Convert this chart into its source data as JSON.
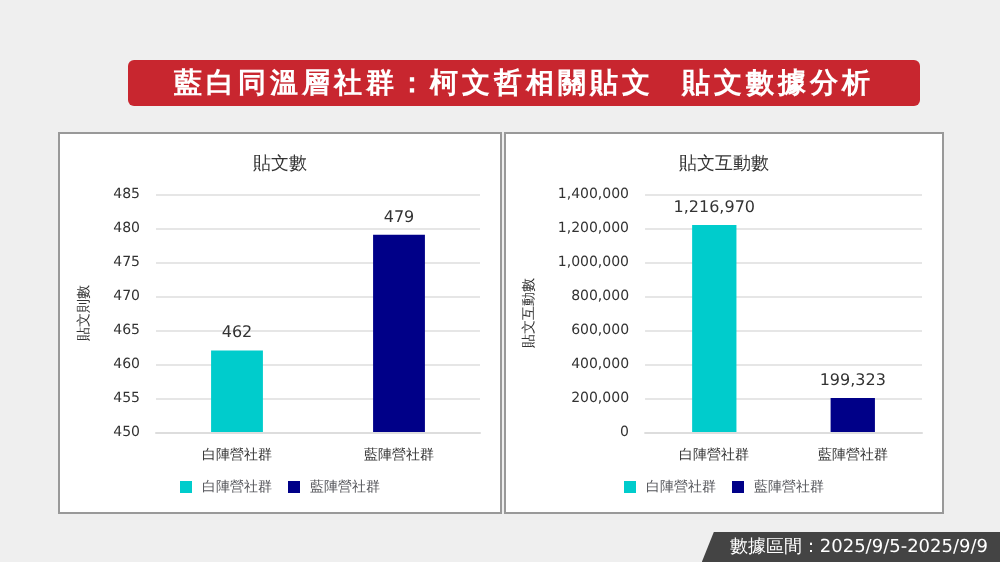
{
  "chart_data": [
    {
      "type": "bar",
      "title": "貼文數",
      "ylabel": "貼文則數",
      "annotations": [
        "藍白同溫層社群：柯文哲相關貼文  貼文數據分析"
      ],
      "categories": [
        "白陣營社群",
        "藍陣營社群"
      ],
      "series": [
        {
          "name": "白陣營社群",
          "color": "#00cccc",
          "values": [
            462,
            null
          ]
        },
        {
          "name": "藍陣營社群",
          "color": "#000088",
          "values": [
            null,
            479
          ]
        }
      ],
      "ylim": [
        450,
        485
      ],
      "yticks": [
        450,
        455,
        460,
        465,
        470,
        475,
        480,
        485
      ],
      "grid": "y",
      "legend": "bottom",
      "data_labels": true
    },
    {
      "type": "bar",
      "title": "貼文互動數",
      "ylabel": "貼文互動數",
      "annotations": [
        "數據區間：2025/9/5-2025/9/9"
      ],
      "categories": [
        "白陣營社群",
        "藍陣營社群"
      ],
      "series": [
        {
          "name": "白陣營社群",
          "color": "#00cccc",
          "values": [
            1216970,
            null
          ],
          "value_labels": [
            "1,216,970",
            null
          ]
        },
        {
          "name": "藍陣營社群",
          "color": "#000088",
          "values": [
            null,
            199323
          ],
          "value_labels": [
            null,
            "199,323"
          ]
        }
      ],
      "ylim": [
        0,
        1400000
      ],
      "yticks": [
        0,
        {
          "value": 200000,
          "label": "200,000"
        },
        {
          "value": 400000,
          "label": "400,000"
        },
        {
          "value": 600000,
          "label": "600,000"
        },
        {
          "value": 800000,
          "label": "800,000"
        },
        {
          "value": 1000000,
          "label": "1,000,000"
        },
        {
          "value": 1200000,
          "label": "1,200,000"
        },
        {
          "value": 1400000,
          "label": "1,400,000"
        }
      ],
      "grid": "y",
      "legend": "bottom"
    }
  ]
}
